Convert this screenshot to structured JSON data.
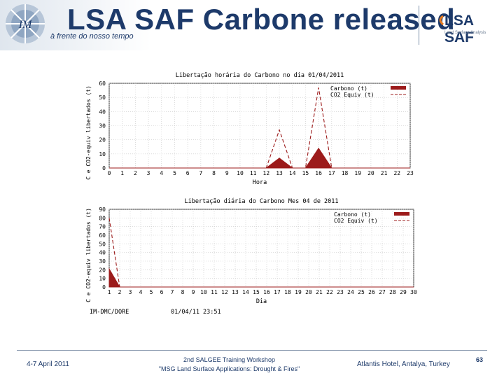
{
  "header": {
    "title": "LSA SAF Carbone released",
    "tagline": "à frente do nosso tempo",
    "brand": "LSA SAF",
    "brand_sub": "Land Surface Analysis",
    "colors": {
      "title": "#1d3a6a",
      "accent": "#e87a1e",
      "bar": "#9c1b1b"
    }
  },
  "chart_data": [
    {
      "type": "area",
      "title": "Libertação horária do Carbono no dia 01/04/2011",
      "xlabel": "Hora",
      "ylabel": "C e CO2-equiv libertados (t)",
      "xlim": [
        0,
        23
      ],
      "ylim": [
        0,
        60
      ],
      "yticks": [
        0,
        10,
        20,
        30,
        40,
        50,
        60
      ],
      "x": [
        0,
        1,
        2,
        3,
        4,
        5,
        6,
        7,
        8,
        9,
        10,
        11,
        12,
        13,
        14,
        15,
        16,
        17,
        18,
        19,
        20,
        21,
        22,
        23
      ],
      "legend_position": "top-right",
      "grid": true,
      "series": [
        {
          "name": "Carbono (t)",
          "style": "filled",
          "color": "#9c1b1b",
          "values": [
            0,
            0,
            0,
            0,
            0,
            0,
            0,
            0,
            0,
            0,
            0,
            0,
            0,
            7,
            0,
            0,
            14,
            0,
            0,
            0,
            0,
            0,
            0,
            0
          ]
        },
        {
          "name": "CO2 Equiv (t)",
          "style": "dashed",
          "color": "#9c1b1b",
          "values": [
            0,
            0,
            0,
            0,
            0,
            0,
            0,
            0,
            0,
            0,
            0,
            0,
            0,
            27,
            0,
            0,
            57,
            0,
            0,
            0,
            0,
            0,
            0,
            0
          ]
        }
      ]
    },
    {
      "type": "area",
      "title": "Libertação diária do Carbono Mes 04 de 2011",
      "xlabel": "Dia",
      "ylabel": "C e CO2-equiv libertados (t)",
      "xlim": [
        1,
        30
      ],
      "ylim": [
        0,
        90
      ],
      "yticks": [
        0,
        10,
        20,
        30,
        40,
        50,
        60,
        70,
        80,
        90
      ],
      "x": [
        1,
        2,
        3,
        4,
        5,
        6,
        7,
        8,
        9,
        10,
        11,
        12,
        13,
        14,
        15,
        16,
        17,
        18,
        19,
        20,
        21,
        22,
        23,
        24,
        25,
        26,
        27,
        28,
        29,
        30
      ],
      "legend_position": "top-right",
      "grid": true,
      "series": [
        {
          "name": "Carbono (t)",
          "style": "filled",
          "color": "#9c1b1b",
          "values": [
            21,
            0,
            0,
            0,
            0,
            0,
            0,
            0,
            0,
            0,
            0,
            0,
            0,
            0,
            0,
            0,
            0,
            0,
            0,
            0,
            0,
            0,
            0,
            0,
            0,
            0,
            0,
            0,
            0,
            0
          ]
        },
        {
          "name": "CO2 Equiv (t)",
          "style": "dashed",
          "color": "#9c1b1b",
          "values": [
            80,
            0,
            0,
            0,
            0,
            0,
            0,
            0,
            0,
            0,
            0,
            0,
            0,
            0,
            0,
            0,
            0,
            0,
            0,
            0,
            0,
            0,
            0,
            0,
            0,
            0,
            0,
            0,
            0,
            0
          ]
        }
      ]
    }
  ],
  "chart_footer": {
    "source": "IM-DMC/DORE",
    "timestamp": "01/04/11 23:51"
  },
  "footer": {
    "date": "4-7 April 2011",
    "workshop_line1": "2nd SALGEE Training Workshop",
    "workshop_line2": "\"MSG Land Surface Applications: Drought & Fires\"",
    "place": "Atlantis Hotel, Antalya, Turkey",
    "page": "63"
  }
}
